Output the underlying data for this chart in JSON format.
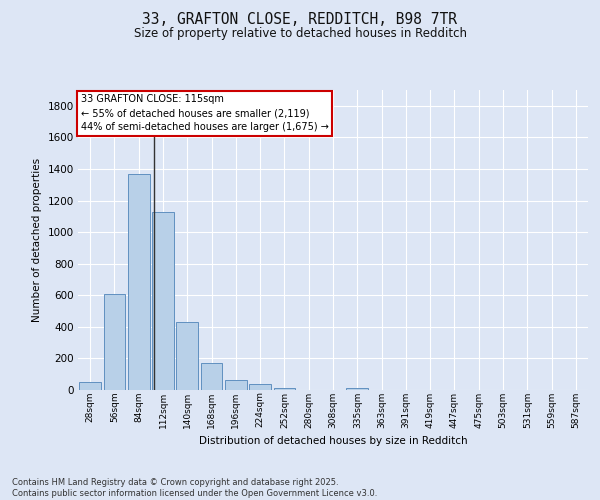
{
  "title_line1": "33, GRAFTON CLOSE, REDDITCH, B98 7TR",
  "title_line2": "Size of property relative to detached houses in Redditch",
  "xlabel": "Distribution of detached houses by size in Redditch",
  "ylabel": "Number of detached properties",
  "categories": [
    "28sqm",
    "56sqm",
    "84sqm",
    "112sqm",
    "140sqm",
    "168sqm",
    "196sqm",
    "224sqm",
    "252sqm",
    "280sqm",
    "308sqm",
    "335sqm",
    "363sqm",
    "391sqm",
    "419sqm",
    "447sqm",
    "475sqm",
    "503sqm",
    "531sqm",
    "559sqm",
    "587sqm"
  ],
  "values": [
    50,
    605,
    1370,
    1125,
    430,
    170,
    65,
    35,
    10,
    0,
    0,
    15,
    0,
    0,
    0,
    0,
    0,
    0,
    0,
    0,
    0
  ],
  "bar_color": "#b8d0e8",
  "bar_edge_color": "#6090c0",
  "vline_color": "#333333",
  "annotation_text": "33 GRAFTON CLOSE: 115sqm\n← 55% of detached houses are smaller (2,119)\n44% of semi-detached houses are larger (1,675) →",
  "annotation_edge_color": "#cc0000",
  "ylim": [
    0,
    1900
  ],
  "yticks": [
    0,
    200,
    400,
    600,
    800,
    1000,
    1200,
    1400,
    1600,
    1800
  ],
  "background_color": "#dde6f5",
  "grid_color": "#ffffff",
  "footer_line1": "Contains HM Land Registry data © Crown copyright and database right 2025.",
  "footer_line2": "Contains public sector information licensed under the Open Government Licence v3.0."
}
